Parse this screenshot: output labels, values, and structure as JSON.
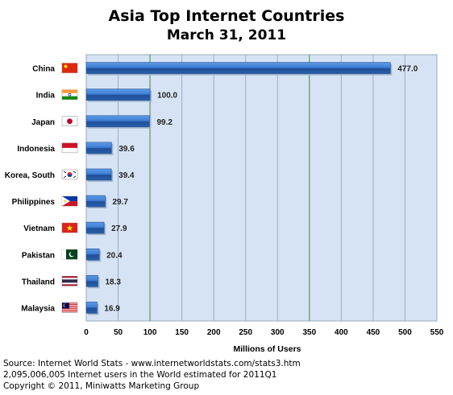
{
  "header": {
    "title": "Asia Top Internet Countries",
    "subtitle": "March 31, 2011"
  },
  "chart_data": {
    "type": "bar",
    "orientation": "horizontal",
    "title": "Asia Top Internet Countries",
    "subtitle": "March 31, 2011",
    "xlabel": "Millions of Users",
    "ylabel": "",
    "categories": [
      "China",
      "India",
      "Japan",
      "Indonesia",
      "Korea, South",
      "Philippines",
      "Vietnam",
      "Pakistan",
      "Thailand",
      "Malaysia"
    ],
    "values": [
      477.0,
      100.0,
      99.2,
      39.6,
      39.4,
      29.7,
      27.9,
      20.4,
      18.3,
      16.9
    ],
    "value_labels": [
      "477.0",
      "100.0",
      "99.2",
      "39.6",
      "39.4",
      "29.7",
      "27.9",
      "20.4",
      "18.3",
      "16.9"
    ],
    "xlim": [
      0,
      550
    ],
    "xticks": [
      0,
      50,
      100,
      150,
      200,
      250,
      300,
      350,
      400,
      450,
      500,
      550
    ],
    "grid": true,
    "legend": "none",
    "colors": {
      "plot_bg": "#d6e3f4",
      "bar": "#3f7fd4",
      "bar_dark": "#1f4f9a",
      "grid_minor": "#9aaec8",
      "grid_major": "#3c8a55"
    }
  },
  "footer": {
    "source": "Source: Internet World Stats - www.internetworldstats.com/stats3.htm",
    "users_note": "2,095,006,005 Internet users in the World estimated for 2011Q1",
    "copyright": "Copyright © 2011, Miniwatts Marketing Group"
  }
}
